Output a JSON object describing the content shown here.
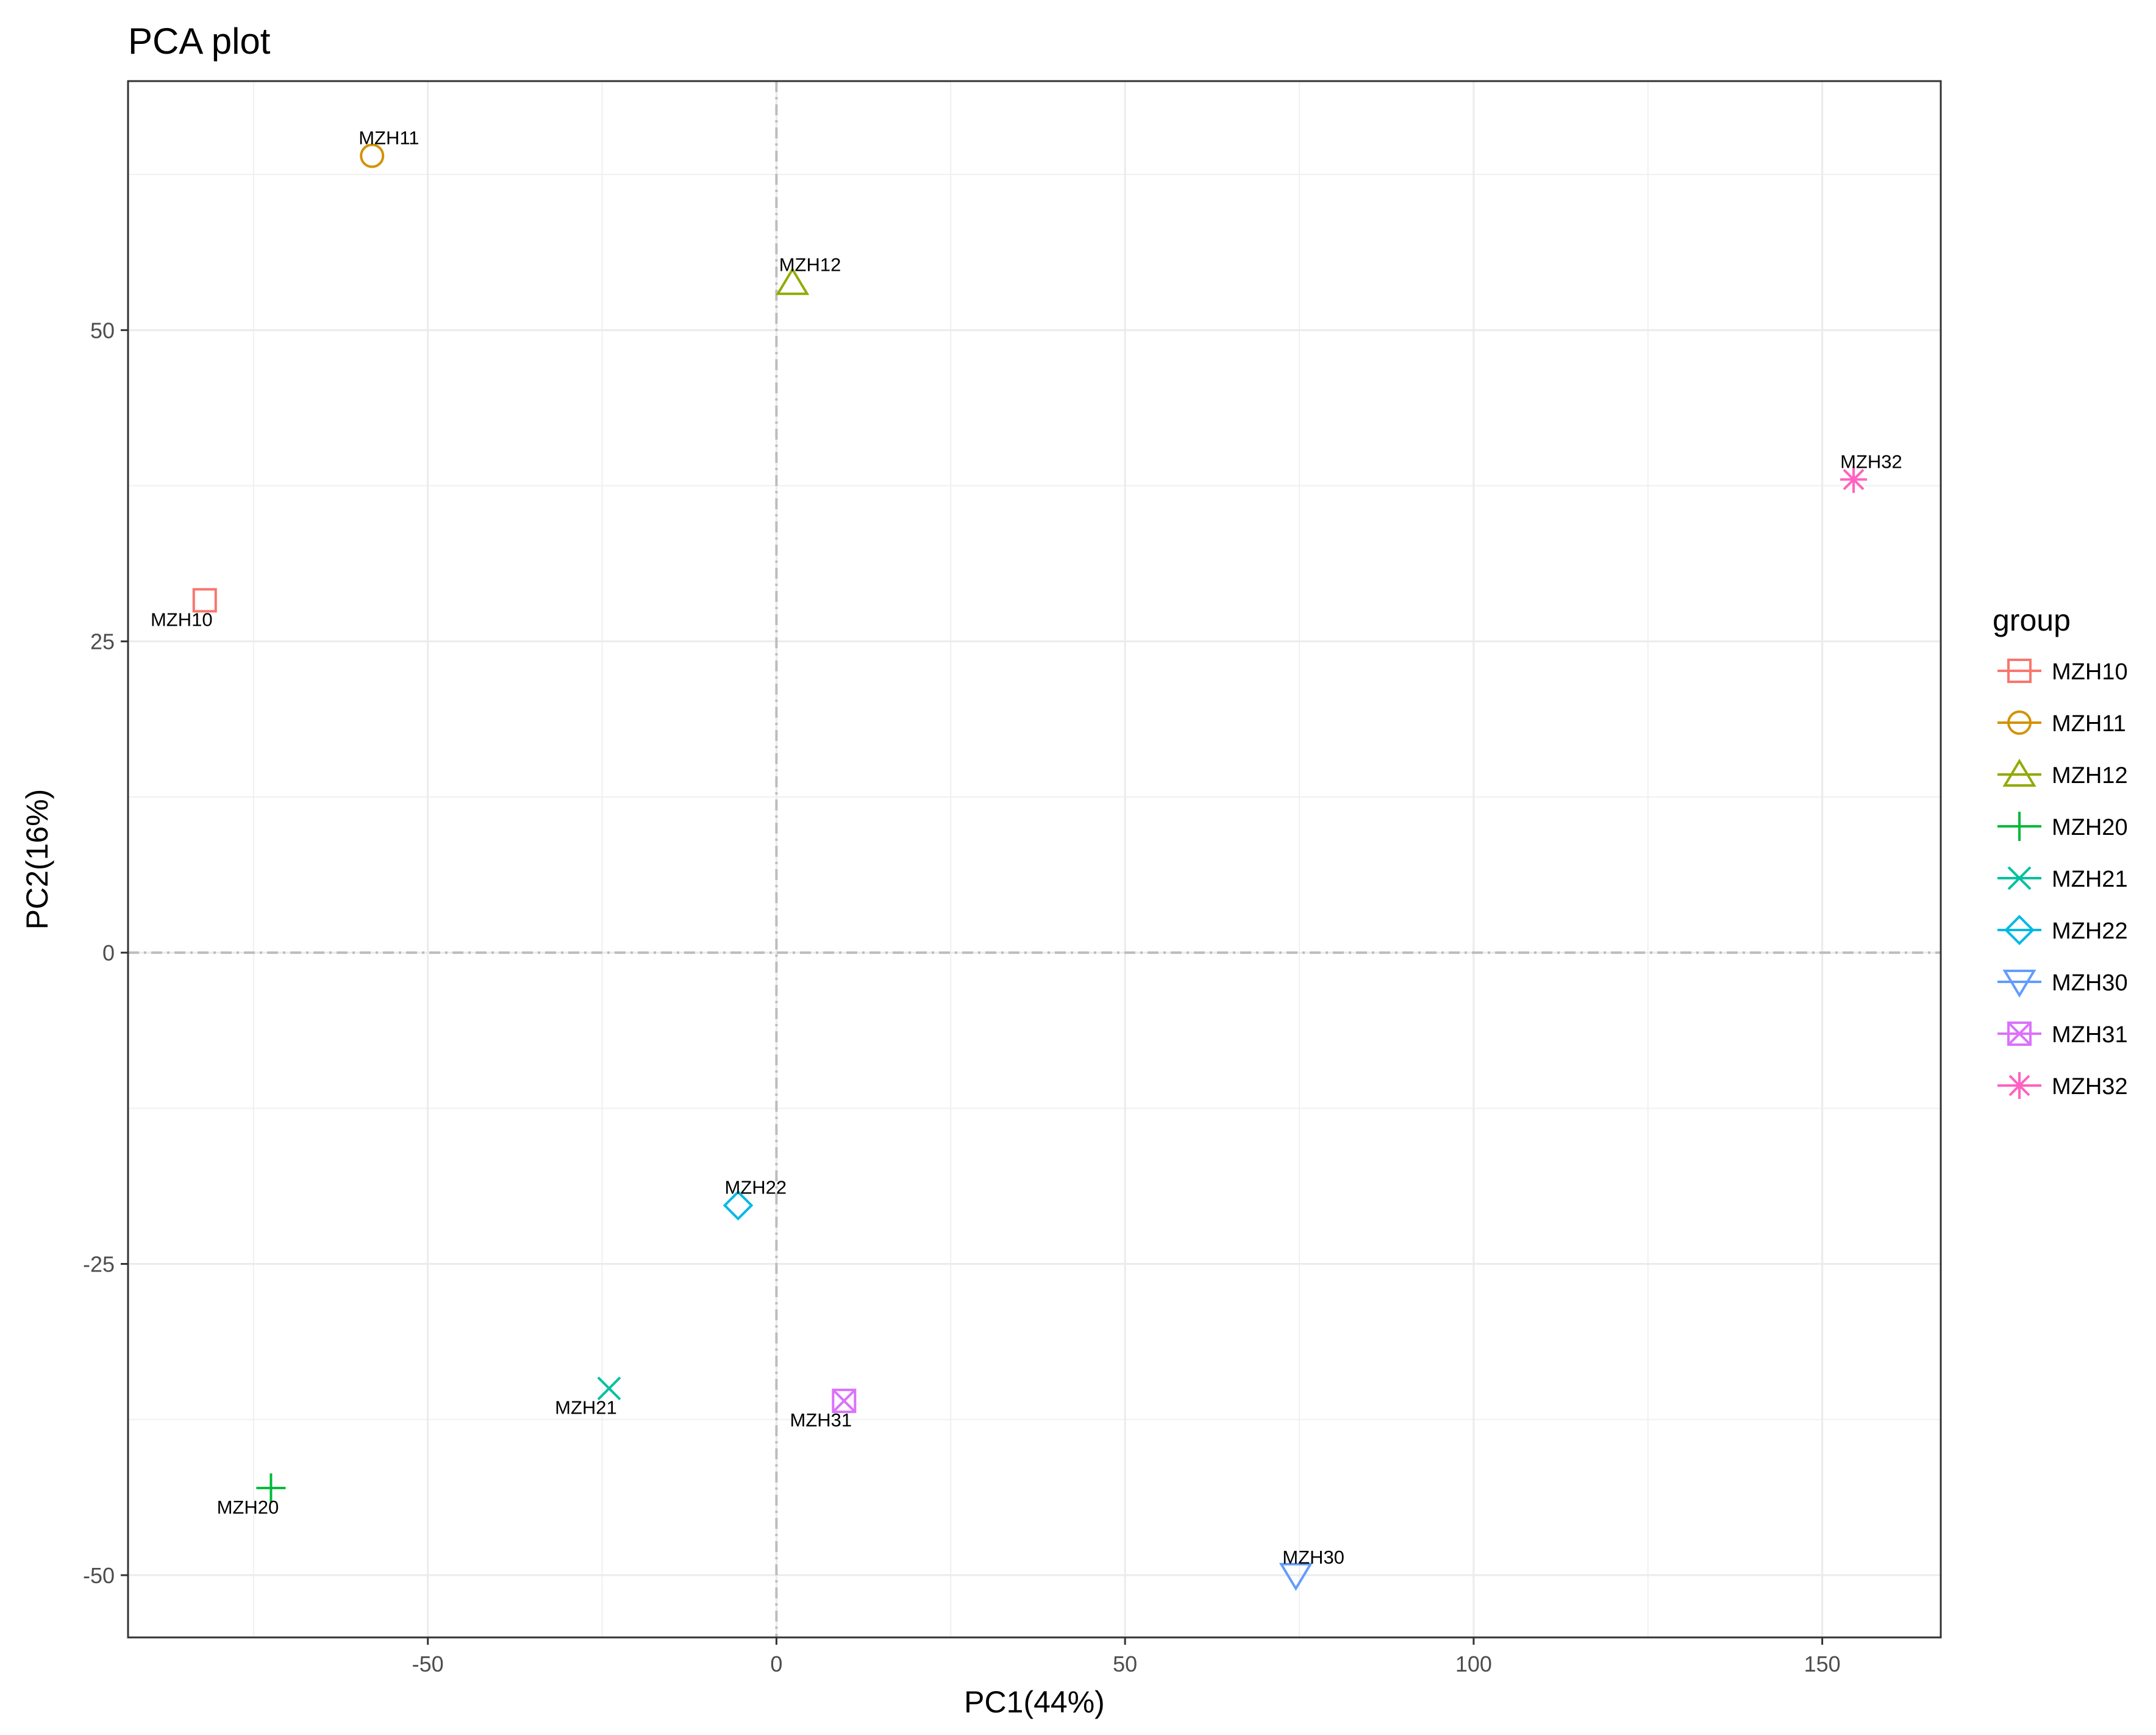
{
  "chart_data": {
    "type": "scatter",
    "title": "PCA plot",
    "xlabel": "PC1(44%)",
    "ylabel": "PC2(16%)",
    "xlim": [
      -93,
      167
    ],
    "ylim": [
      -55,
      70
    ],
    "x_ticks": [
      -50,
      0,
      50,
      100,
      150
    ],
    "y_ticks": [
      -50,
      -25,
      0,
      25,
      50
    ],
    "x_tick_labels": [
      "-50",
      "0",
      "50",
      "100",
      "150"
    ],
    "y_tick_labels": [
      "-50",
      "-25",
      "0",
      "25",
      "50"
    ],
    "grid": true,
    "reference_lines": {
      "x": 0,
      "y": 0,
      "style": "dashdot"
    },
    "legend": {
      "title": "group",
      "position": "right"
    },
    "series": [
      {
        "name": "MZH10",
        "x": -82,
        "y": 28.3,
        "color": "#F8766D",
        "shape": "square",
        "label": "MZH10",
        "label_pos": "below-left"
      },
      {
        "name": "MZH11",
        "x": -58,
        "y": 64,
        "color": "#D39200",
        "shape": "circle",
        "label": "MZH11",
        "label_pos": "above"
      },
      {
        "name": "MZH12",
        "x": 2.3,
        "y": 53.8,
        "color": "#93AA00",
        "shape": "triangle",
        "label": "MZH12",
        "label_pos": "above"
      },
      {
        "name": "MZH20",
        "x": -72.5,
        "y": -43,
        "color": "#00BA38",
        "shape": "plus",
        "label": "MZH20",
        "label_pos": "below-left"
      },
      {
        "name": "MZH21",
        "x": -24,
        "y": -35,
        "color": "#00C19F",
        "shape": "cross",
        "label": "MZH21",
        "label_pos": "below-left"
      },
      {
        "name": "MZH22",
        "x": -5.5,
        "y": -20.3,
        "color": "#00B9E3",
        "shape": "diamond",
        "label": "MZH22",
        "label_pos": "above"
      },
      {
        "name": "MZH30",
        "x": 74.5,
        "y": -50,
        "color": "#619CFF",
        "shape": "triangle-down",
        "label": "MZH30",
        "label_pos": "above"
      },
      {
        "name": "MZH31",
        "x": 9.7,
        "y": -36,
        "color": "#DB72FB",
        "shape": "square-cross",
        "label": "MZH31",
        "label_pos": "below-left"
      },
      {
        "name": "MZH32",
        "x": 154.5,
        "y": 38,
        "color": "#FF61C3",
        "shape": "asterisk",
        "label": "MZH32",
        "label_pos": "above"
      }
    ]
  }
}
